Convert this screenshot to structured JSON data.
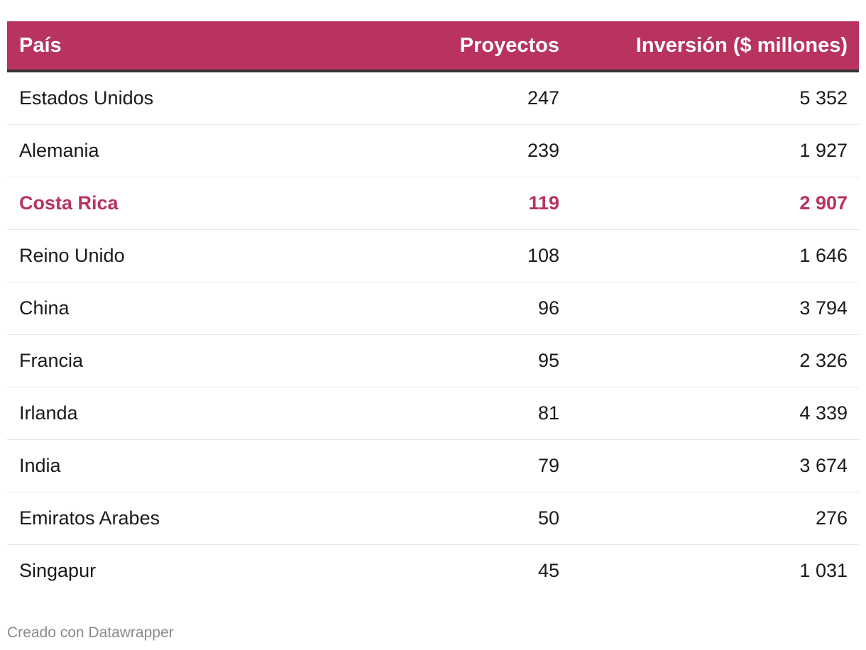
{
  "chart_data": {
    "type": "table",
    "columns": [
      "País",
      "Proyectos",
      "Inversión ($ millones)"
    ],
    "rows": [
      {
        "country": "Estados Unidos",
        "projects": "247",
        "investment": "5 352",
        "highlight": false
      },
      {
        "country": "Alemania",
        "projects": "239",
        "investment": "1 927",
        "highlight": false
      },
      {
        "country": "Costa Rica",
        "projects": "119",
        "investment": "2 907",
        "highlight": true
      },
      {
        "country": "Reino Unido",
        "projects": "108",
        "investment": "1 646",
        "highlight": false
      },
      {
        "country": "China",
        "projects": "96",
        "investment": "3 794",
        "highlight": false
      },
      {
        "country": "Francia",
        "projects": "95",
        "investment": "2 326",
        "highlight": false
      },
      {
        "country": "Irlanda",
        "projects": "81",
        "investment": "4 339",
        "highlight": false
      },
      {
        "country": "India",
        "projects": "79",
        "investment": "3 674",
        "highlight": false
      },
      {
        "country": "Emiratos Arabes",
        "projects": "50",
        "investment": "276",
        "highlight": false
      },
      {
        "country": "Singapur",
        "projects": "45",
        "investment": "1 031",
        "highlight": false
      }
    ],
    "header_color": "#b8335d",
    "highlight_color": "#b8335d"
  },
  "footer": {
    "credit": "Creado con Datawrapper"
  }
}
